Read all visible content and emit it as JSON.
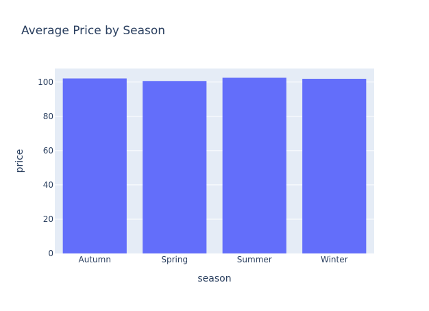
{
  "chart_data": {
    "type": "bar",
    "title": "Average Price by Season",
    "xlabel": "season",
    "ylabel": "price",
    "categories": [
      "Autumn",
      "Spring",
      "Summer",
      "Winter"
    ],
    "values": [
      102.1,
      100.6,
      102.5,
      101.9
    ],
    "ylim": [
      0,
      107.9
    ],
    "yticks": [
      0,
      20,
      40,
      60,
      80,
      100
    ],
    "grid": true,
    "colors": {
      "bar": "#636efa",
      "plot_bg": "#e5ecf6",
      "grid": "#ffffff",
      "text": "#2a3f5f"
    }
  }
}
